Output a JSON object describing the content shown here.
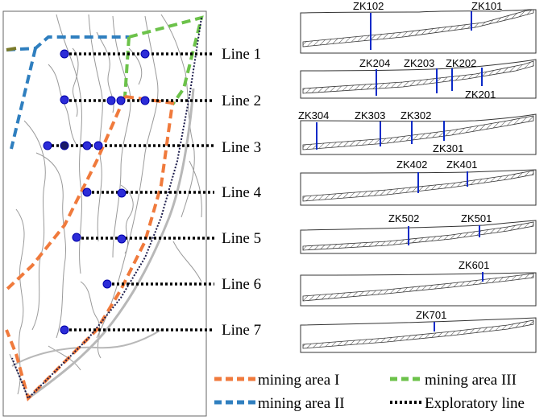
{
  "map": {
    "exploratory_lines": [
      {
        "label": "Line 1"
      },
      {
        "label": "Line 2"
      },
      {
        "label": "Line 3"
      },
      {
        "label": "Line 4"
      },
      {
        "label": "Line 5"
      },
      {
        "label": "Line 6"
      },
      {
        "label": "Line 7"
      }
    ]
  },
  "sections": [
    {
      "id": "section-1",
      "boreholes": [
        {
          "label": "ZK102"
        },
        {
          "label": "ZK101"
        }
      ]
    },
    {
      "id": "section-2",
      "boreholes": [
        {
          "label": "ZK204"
        },
        {
          "label": "ZK203"
        },
        {
          "label": "ZK202"
        },
        {
          "label": "ZK201"
        }
      ]
    },
    {
      "id": "section-3",
      "boreholes": [
        {
          "label": "ZK304"
        },
        {
          "label": "ZK303"
        },
        {
          "label": "ZK302"
        },
        {
          "label": "ZK301"
        }
      ]
    },
    {
      "id": "section-4",
      "boreholes": [
        {
          "label": "ZK402"
        },
        {
          "label": "ZK401"
        }
      ]
    },
    {
      "id": "section-5",
      "boreholes": [
        {
          "label": "ZK502"
        },
        {
          "label": "ZK501"
        }
      ]
    },
    {
      "id": "section-6",
      "boreholes": [
        {
          "label": "ZK601"
        }
      ]
    },
    {
      "id": "section-7",
      "boreholes": [
        {
          "label": "ZK701"
        }
      ]
    }
  ],
  "legend": {
    "mining_area_1": {
      "label": "mining area I",
      "color": "#f07a3c"
    },
    "mining_area_2": {
      "label": "mining area II",
      "color": "#2f7fbf"
    },
    "mining_area_3": {
      "label": "mining area III",
      "color": "#6cc24a"
    },
    "exploratory": {
      "label": "Exploratory line",
      "color": "#000000"
    }
  }
}
